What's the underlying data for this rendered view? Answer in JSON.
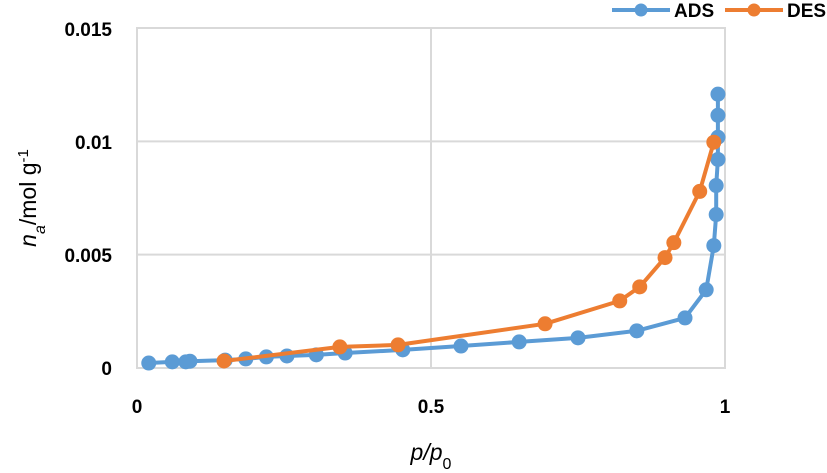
{
  "chart_data": {
    "type": "line",
    "title": "",
    "xlabel": "p/p0",
    "ylabel": "na/mol g-1",
    "xlabel_parts": {
      "main": "p/p",
      "sub": "0"
    },
    "ylabel_parts": {
      "main": "n",
      "sub": "a",
      "rest": "/mol g",
      "sup": "-1"
    },
    "xlim": [
      0,
      1
    ],
    "ylim": [
      0,
      0.015
    ],
    "x_ticks": [
      "0",
      "0.5",
      "1"
    ],
    "y_ticks": [
      "0",
      "0.005",
      "0.01",
      "0.015"
    ],
    "grid": true,
    "legend_position": "top-right",
    "series": [
      {
        "name": "ADS",
        "color": "#5B9BD5",
        "marker": "circle",
        "x": [
          0.02,
          0.06,
          0.083,
          0.09,
          0.15,
          0.185,
          0.22,
          0.255,
          0.305,
          0.354,
          0.452,
          0.551,
          0.65,
          0.75,
          0.85,
          0.932,
          0.968,
          0.981,
          0.985,
          0.985,
          0.988,
          0.988,
          0.988,
          0.988
        ],
        "y": [
          0.00022,
          0.00027,
          0.00027,
          0.0003,
          0.00035,
          0.0004,
          0.00049,
          0.00053,
          0.00058,
          0.00066,
          0.0008,
          0.00097,
          0.00115,
          0.00133,
          0.00164,
          0.00221,
          0.00345,
          0.0054,
          0.00677,
          0.00805,
          0.0092,
          0.01018,
          0.01115,
          0.01208
        ]
      },
      {
        "name": "DES",
        "color": "#ED7D31",
        "marker": "circle",
        "x": [
          0.148,
          0.345,
          0.444,
          0.694,
          0.821,
          0.855,
          0.898,
          0.913,
          0.957,
          0.981
        ],
        "y": [
          0.00031,
          0.00093,
          0.00102,
          0.00195,
          0.00296,
          0.00358,
          0.00487,
          0.00553,
          0.00779,
          0.00996
        ]
      }
    ]
  },
  "legend": {
    "items": [
      {
        "label": "ADS",
        "color": "#5B9BD5"
      },
      {
        "label": "DES",
        "color": "#ED7D31"
      }
    ]
  },
  "axes": {
    "x_ticks": [
      "0",
      "0.5",
      "1"
    ],
    "y_ticks": [
      "0",
      "0.005",
      "0.01",
      "0.015"
    ],
    "x_title": {
      "main": "p/p",
      "sub": "0"
    },
    "y_title": {
      "italic": "n",
      "sub": "a",
      "rest": "/mol g",
      "sup": "-1"
    }
  }
}
